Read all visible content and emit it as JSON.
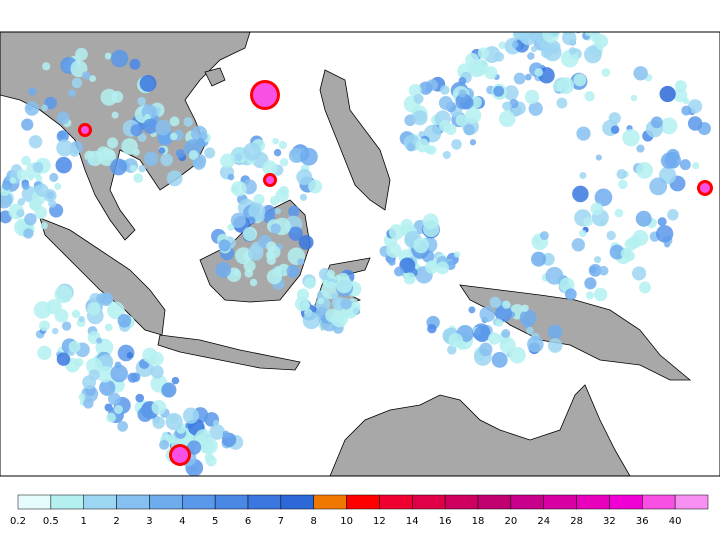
{
  "legend": {
    "labels": [
      "0.2",
      "0.5",
      "1",
      "2",
      "3",
      "4",
      "5",
      "6",
      "7",
      "8",
      "10",
      "12",
      "14",
      "16",
      "18",
      "20",
      "24",
      "28",
      "32",
      "36",
      "40"
    ],
    "colors": [
      "#e4fcfc",
      "#b4f0f0",
      "#9cd6f2",
      "#86c0f0",
      "#6eacee",
      "#5a98ea",
      "#4a88e6",
      "#3a78e0",
      "#2c68d8",
      "#f07800",
      "#ff0000",
      "#f00030",
      "#e00048",
      "#d00060",
      "#c00070",
      "#c8008c",
      "#d800a4",
      "#e800bc",
      "#f000d4",
      "#f850e4",
      "#f890f4"
    ]
  }
}
